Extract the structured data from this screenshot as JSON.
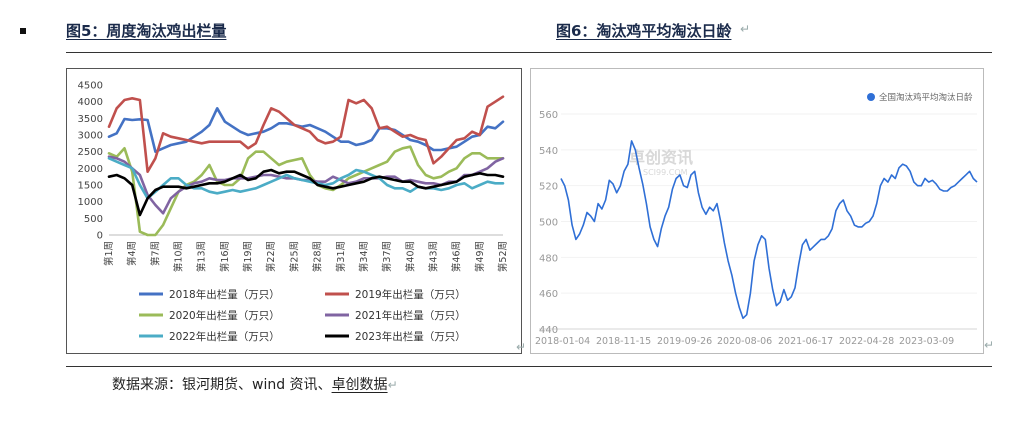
{
  "headings": {
    "left": "图5：周度淘汰鸡出栏量",
    "right": "图6：淘汰鸡平均淘汰日龄"
  },
  "source": {
    "prefix": "数据来源：银河期货、wind 资讯、",
    "link": "卓创数据"
  },
  "marks": {
    "return": "↵"
  },
  "watermark": {
    "line1": "卓创资讯",
    "line2": "SCI99.COM"
  },
  "chart_data": [
    {
      "type": "line",
      "title": "",
      "x_ticks": [
        "第1周",
        "第4周",
        "第7周",
        "第10周",
        "第13周",
        "第16周",
        "第19周",
        "第22周",
        "第25周",
        "第28周",
        "第31周",
        "第34周",
        "第37周",
        "第40周",
        "第43周",
        "第46周",
        "第49周",
        "第52周"
      ],
      "y_ticks": [
        "0",
        "500",
        "1000",
        "1500",
        "2000",
        "2500",
        "3000",
        "3500",
        "4000",
        "4500"
      ],
      "ylim": [
        0,
        4500
      ],
      "legend_position": "bottom",
      "series": [
        {
          "name": "2018年出栏量（万只）",
          "color": "#4472c4",
          "values": [
            2950,
            3050,
            3480,
            3450,
            3470,
            3450,
            2500,
            2600,
            2700,
            2750,
            2800,
            2950,
            3100,
            3300,
            3800,
            3400,
            3250,
            3100,
            3000,
            3050,
            3100,
            3200,
            3350,
            3350,
            3300,
            3250,
            3300,
            3200,
            3100,
            2950,
            2800,
            2800,
            2700,
            2750,
            2850,
            3200,
            3200,
            3150,
            3000,
            2850,
            2800,
            2700,
            2550,
            2550,
            2600,
            2650,
            2800,
            2950,
            3000,
            3250,
            3200,
            3400
          ]
        },
        {
          "name": "2019年出栏量（万只）",
          "color": "#c0504d",
          "values": [
            3250,
            3800,
            4050,
            4100,
            4050,
            1900,
            2300,
            3050,
            2950,
            2900,
            2850,
            2800,
            2750,
            2800,
            2800,
            2800,
            2800,
            2800,
            2600,
            2750,
            3300,
            3800,
            3700,
            3500,
            3300,
            3200,
            3100,
            2850,
            2750,
            2800,
            2950,
            4050,
            3950,
            4050,
            3800,
            3200,
            3250,
            3100,
            2950,
            3000,
            2900,
            2850,
            2150,
            2350,
            2600,
            2850,
            2900,
            3100,
            3000,
            3850,
            4000,
            4150
          ]
        },
        {
          "name": "2020年出栏量（万只）",
          "color": "#9bbb59",
          "values": [
            2450,
            2350,
            2600,
            1900,
            100,
            0,
            0,
            300,
            800,
            1300,
            1500,
            1600,
            1800,
            2100,
            1600,
            1500,
            1500,
            1700,
            2300,
            2500,
            2500,
            2300,
            2100,
            2200,
            2250,
            2300,
            1800,
            1500,
            1400,
            1350,
            1500,
            1700,
            1800,
            1900,
            2000,
            2100,
            2200,
            2500,
            2600,
            2650,
            2100,
            1800,
            1700,
            1750,
            1900,
            2000,
            2300,
            2450,
            2450,
            2300,
            2300,
            2300
          ]
        },
        {
          "name": "2021年出栏量（万只）",
          "color": "#8064a2",
          "values": [
            2350,
            2300,
            2200,
            2000,
            1800,
            1200,
            900,
            650,
            1100,
            1300,
            1450,
            1550,
            1600,
            1700,
            1650,
            1650,
            1700,
            1700,
            1700,
            1750,
            1800,
            1800,
            1750,
            1700,
            1700,
            1650,
            1650,
            1600,
            1600,
            1750,
            1650,
            1550,
            1600,
            1700,
            1700,
            1700,
            1750,
            1750,
            1600,
            1650,
            1600,
            1550,
            1550,
            1500,
            1600,
            1600,
            1800,
            1800,
            1900,
            2000,
            2200,
            2300
          ]
        },
        {
          "name": "2022年出栏量（万只）",
          "color": "#4bacc6",
          "values": [
            2300,
            2200,
            2100,
            2000,
            1500,
            1100,
            1300,
            1500,
            1700,
            1700,
            1500,
            1400,
            1400,
            1300,
            1250,
            1300,
            1350,
            1300,
            1350,
            1400,
            1500,
            1600,
            1700,
            1800,
            1700,
            1650,
            1600,
            1550,
            1500,
            1550,
            1700,
            1800,
            1950,
            1900,
            1800,
            1700,
            1500,
            1400,
            1400,
            1300,
            1450,
            1400,
            1400,
            1350,
            1400,
            1500,
            1550,
            1400,
            1500,
            1600,
            1550,
            1550
          ]
        },
        {
          "name": "2023年出栏量（万只）",
          "color": "#000000",
          "values": [
            1750,
            1800,
            1700,
            1500,
            600,
            1100,
            1350,
            1450,
            1450,
            1450,
            1400,
            1450,
            1500,
            1550,
            1550,
            1600,
            1700,
            1800,
            1650,
            1700,
            1900,
            1950,
            1850,
            1900,
            1900,
            1800,
            1700,
            1500,
            1450,
            1400,
            1450,
            1500,
            1550,
            1600,
            1700,
            1750,
            1700,
            1650,
            1600,
            1600,
            1450,
            1400,
            1450,
            1500,
            1550,
            1600,
            1750,
            1800,
            1850,
            1800,
            1800,
            1750
          ]
        }
      ]
    },
    {
      "type": "line",
      "title": "",
      "x_ticks": [
        "2018-01-04",
        "2018-11-15",
        "2019-09-26",
        "2020-08-06",
        "2021-06-17",
        "2022-04-28",
        "2023-03-09"
      ],
      "y_ticks": [
        "440",
        "460",
        "480",
        "500",
        "520",
        "540",
        "560"
      ],
      "ylim": [
        440,
        560
      ],
      "legend_position": "top-right",
      "series": [
        {
          "name": "全国淘汰鸡平均淘汰日龄",
          "color": "#2f6fd6",
          "values": [
            524,
            520,
            512,
            498,
            490,
            493,
            498,
            505,
            503,
            500,
            510,
            507,
            512,
            523,
            521,
            516,
            520,
            528,
            532,
            545,
            540,
            530,
            521,
            510,
            497,
            490,
            486,
            496,
            503,
            508,
            518,
            524,
            526,
            520,
            519,
            526,
            528,
            516,
            508,
            504,
            508,
            506,
            510,
            500,
            488,
            478,
            470,
            460,
            452,
            446,
            448,
            460,
            478,
            487,
            492,
            490,
            474,
            462,
            453,
            455,
            462,
            456,
            458,
            463,
            476,
            487,
            490,
            484,
            486,
            488,
            490,
            490,
            492,
            496,
            506,
            510,
            512,
            506,
            503,
            498,
            497,
            497,
            499,
            500,
            503,
            510,
            520,
            524,
            522,
            526,
            524,
            530,
            532,
            531,
            528,
            522,
            520,
            520,
            524,
            522,
            523,
            521,
            518,
            517,
            517,
            519,
            520,
            522,
            524,
            526,
            528,
            524,
            522
          ]
        }
      ]
    }
  ]
}
